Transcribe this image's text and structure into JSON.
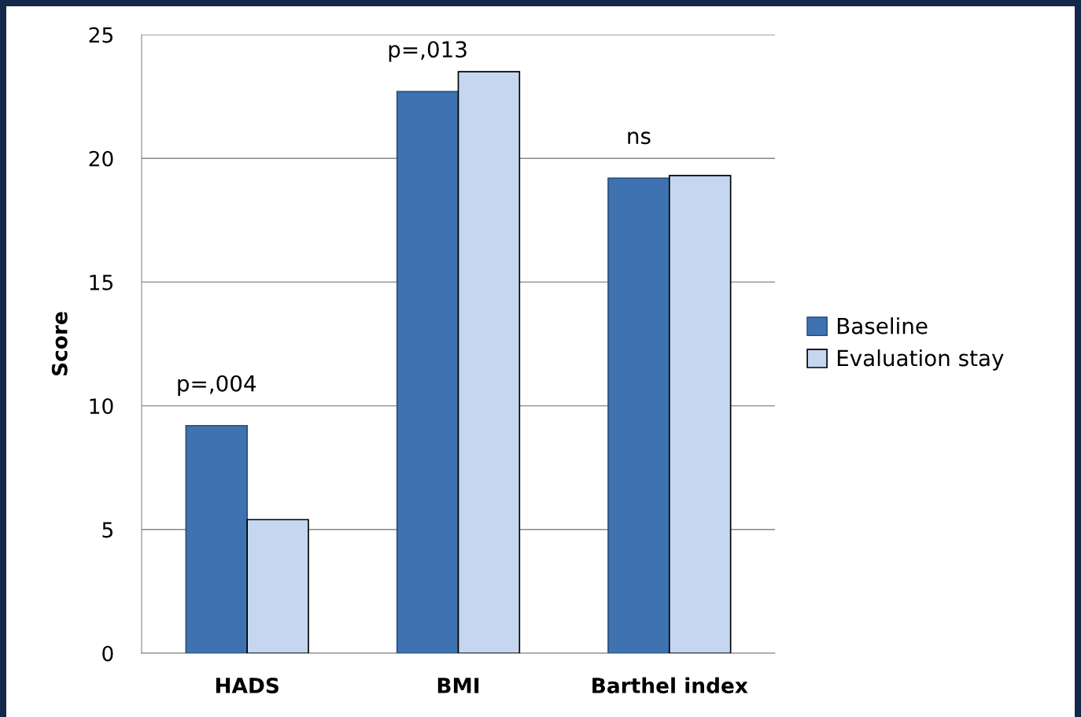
{
  "chart_data": {
    "type": "bar",
    "ylabel": "Score",
    "categories": [
      "HADS",
      "BMI",
      "Barthel index"
    ],
    "series": [
      {
        "name": "Baseline",
        "color": "#3f72b0",
        "values": [
          9.2,
          22.7,
          19.2
        ]
      },
      {
        "name": "Evaluation stay",
        "color": "#c5d6f0",
        "values": [
          5.4,
          23.5,
          19.3
        ]
      }
    ],
    "ylim": [
      0,
      25
    ],
    "yticks": [
      0,
      5,
      10,
      15,
      20,
      25
    ],
    "grid": "y",
    "legend": "right",
    "annotations": [
      "p=,004",
      "p=,013",
      "ns"
    ]
  }
}
